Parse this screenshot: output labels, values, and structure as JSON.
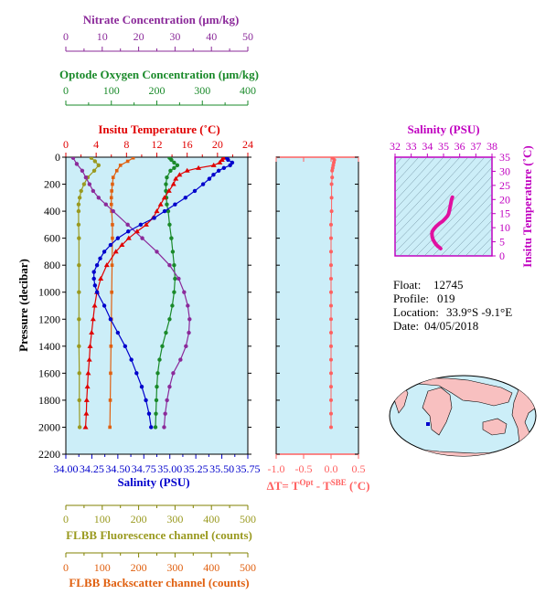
{
  "colors": {
    "nitrate": "#8b2a9a",
    "oxygen": "#1a8a2a",
    "temperature": "#e00000",
    "salinity": "#0000cc",
    "fluorescence": "#9a9a20",
    "backscatter": "#e06010",
    "delta_t": "#ff6060",
    "ts_curve": "#e010a0",
    "ts_title": "#c000c0",
    "plot_bg": "#cceef8",
    "axis_olive": "#808000"
  },
  "info": {
    "float_label": "Float:",
    "float_value": "12745",
    "profile_label": "Profile:",
    "profile_value": "019",
    "location_label": "Location:",
    "location_value": "33.9°S  -9.1°E",
    "date_label": "Date:",
    "date_value": "04/05/2018"
  },
  "chart_data": [
    {
      "type": "line",
      "panel": "main_profile",
      "ylabel": "Pressure (decibar)",
      "ylim": [
        2200,
        0
      ],
      "yticks": [
        "0",
        "200",
        "400",
        "600",
        "800",
        "1000",
        "1200",
        "1400",
        "1600",
        "1800",
        "2000",
        "2200"
      ],
      "axes": {
        "nitrate": {
          "title": "Nitrate Concentration (μm/kg)",
          "range": [
            0,
            50
          ],
          "ticks": [
            "0",
            "10",
            "20",
            "30",
            "40",
            "50"
          ]
        },
        "oxygen": {
          "title": "Optode Oxygen Concentration (μm/kg)",
          "range": [
            0,
            400
          ],
          "ticks": [
            "0",
            "100",
            "200",
            "300",
            "400"
          ]
        },
        "temperature": {
          "title": "Insitu Temperature (˚C)",
          "range": [
            0,
            24
          ],
          "ticks": [
            "0",
            "4",
            "8",
            "12",
            "16",
            "20",
            "24"
          ]
        },
        "salinity": {
          "title": "Salinity (PSU)",
          "range": [
            34.0,
            35.75
          ],
          "ticks": [
            "34.00",
            "34.25",
            "34.50",
            "34.75",
            "35.00",
            "35.25",
            "35.50",
            "35.75"
          ]
        },
        "fluorescence": {
          "title": "FLBB Fluorescence channel (counts)",
          "range": [
            0,
            500
          ],
          "ticks": [
            "0",
            "100",
            "200",
            "300",
            "400",
            "500"
          ]
        },
        "backscatter": {
          "title": "FLBB Backscatter channel (counts)",
          "range": [
            0,
            500
          ],
          "ticks": [
            "0",
            "100",
            "200",
            "300",
            "400",
            "500"
          ]
        }
      },
      "series": {
        "temperature": {
          "pressure": [
            5,
            20,
            40,
            60,
            80,
            100,
            130,
            160,
            200,
            250,
            300,
            350,
            400,
            450,
            500,
            550,
            600,
            650,
            700,
            800,
            900,
            1000,
            1100,
            1200,
            1300,
            1400,
            1500,
            1600,
            1700,
            1800,
            1900,
            2000
          ],
          "values": [
            20.8,
            20.6,
            20.3,
            19.5,
            17.5,
            16.0,
            15.0,
            14.5,
            14.2,
            13.6,
            13.0,
            12.5,
            12.0,
            11.5,
            10.6,
            9.4,
            8.3,
            7.4,
            6.6,
            5.4,
            4.6,
            4.1,
            3.8,
            3.6,
            3.4,
            3.2,
            3.1,
            2.95,
            2.85,
            2.75,
            2.7,
            2.6
          ]
        },
        "salinity": {
          "pressure": [
            5,
            20,
            40,
            60,
            80,
            100,
            130,
            160,
            200,
            250,
            300,
            350,
            400,
            450,
            500,
            550,
            600,
            650,
            700,
            750,
            800,
            850,
            900,
            950,
            1000,
            1100,
            1200,
            1300,
            1400,
            1500,
            1600,
            1700,
            1800,
            1900,
            2000
          ],
          "values": [
            35.55,
            35.56,
            35.6,
            35.58,
            35.52,
            35.47,
            35.42,
            35.38,
            35.32,
            35.24,
            35.15,
            35.05,
            34.95,
            34.85,
            34.72,
            34.6,
            34.5,
            34.43,
            34.37,
            34.33,
            34.3,
            34.27,
            34.27,
            34.28,
            34.3,
            34.37,
            34.43,
            34.5,
            34.57,
            34.63,
            34.68,
            34.73,
            34.77,
            34.8,
            34.82
          ]
        },
        "nitrate": {
          "pressure": [
            5,
            50,
            100,
            150,
            200,
            250,
            300,
            350,
            400,
            500,
            600,
            700,
            800,
            900,
            1000,
            1100,
            1200,
            1300,
            1400,
            1500,
            1600,
            1700,
            1800,
            1900,
            2000
          ],
          "values": [
            2,
            3,
            4.5,
            5.5,
            6.5,
            7.5,
            9,
            11,
            13,
            17,
            21,
            25,
            28.5,
            31,
            32.5,
            33.5,
            34,
            33.8,
            33,
            31.5,
            29.5,
            28.5,
            27.8,
            27.3,
            27
          ]
        },
        "oxygen": {
          "pressure": [
            5,
            20,
            40,
            60,
            80,
            100,
            150,
            200,
            250,
            300,
            350,
            400,
            500,
            600,
            700,
            800,
            900,
            1000,
            1100,
            1200,
            1300,
            1400,
            1500,
            1600,
            1700,
            1800,
            1900,
            2000
          ],
          "values": [
            228,
            232,
            238,
            245,
            238,
            230,
            222,
            220,
            220,
            221,
            222,
            225,
            228,
            232,
            235,
            238,
            240,
            238,
            234,
            228,
            220,
            212,
            206,
            202,
            200,
            199,
            198,
            197
          ]
        },
        "fluorescence": {
          "pressure": [
            5,
            30,
            60,
            100,
            150,
            200,
            250,
            300,
            350,
            400,
            500,
            600,
            800,
            1000,
            1200,
            1400,
            1600,
            1800,
            2000
          ],
          "values": [
            70,
            80,
            90,
            78,
            60,
            50,
            42,
            38,
            35,
            35,
            35,
            36,
            36,
            36,
            36,
            36,
            37,
            37,
            38
          ]
        },
        "backscatter": {
          "pressure": [
            5,
            30,
            60,
            100,
            150,
            200,
            250,
            300,
            350,
            400,
            500,
            600,
            800,
            1000,
            1200,
            1400,
            1600,
            1800,
            2000
          ],
          "values": [
            185,
            170,
            150,
            140,
            130,
            128,
            126,
            125,
            125,
            126,
            128,
            128,
            127,
            126,
            125,
            124,
            123,
            122,
            121
          ]
        }
      }
    },
    {
      "type": "scatter",
      "panel": "delta_t",
      "xlabel_main": "ΔT= T",
      "xlabel_sup1": "Opt",
      "xlabel_mid": " - T",
      "xlabel_sup2": "SBE",
      "xlabel_end": " (˚C)",
      "xlim": [
        -1.0,
        0.5
      ],
      "xticks": [
        "-1.0",
        "-0.5",
        "0.0",
        "0.5"
      ],
      "pressure": [
        5,
        20,
        40,
        60,
        80,
        100,
        150,
        200,
        300,
        400,
        500,
        600,
        700,
        800,
        900,
        1000,
        1100,
        1200,
        1300,
        1400,
        1500,
        1600,
        1700,
        1800,
        1900,
        2000
      ],
      "values": [
        0.03,
        0.06,
        0.05,
        0.04,
        0.03,
        0.02,
        0.02,
        0.01,
        0.01,
        0.01,
        0.0,
        0.0,
        0.0,
        0.0,
        0.0,
        0.0,
        0.0,
        0.0,
        0.0,
        0.0,
        0.0,
        0.0,
        0.0,
        0.0,
        0.0,
        0.0
      ]
    },
    {
      "type": "line",
      "panel": "ts_diagram",
      "title": "Salinity (PSU)",
      "ylabel": "Insitu Temperature (˚C)",
      "xlim": [
        32,
        38
      ],
      "ylim": [
        0,
        35
      ],
      "xticks": [
        "32",
        "33",
        "34",
        "35",
        "36",
        "37",
        "38"
      ],
      "yticks": [
        "0",
        "5",
        "10",
        "15",
        "20",
        "25",
        "30",
        "35"
      ],
      "salinity": [
        34.82,
        34.75,
        34.65,
        34.55,
        34.45,
        34.35,
        34.3,
        34.28,
        34.3,
        34.4,
        34.55,
        34.75,
        34.95,
        35.1,
        35.25,
        35.32,
        35.38,
        35.45,
        35.5,
        35.55
      ],
      "temperature": [
        2.6,
        3.0,
        3.4,
        4.0,
        4.8,
        5.8,
        6.8,
        7.8,
        8.6,
        9.5,
        10.5,
        11.5,
        12.3,
        13.2,
        14.2,
        15.0,
        16.5,
        18.5,
        20.0,
        20.8
      ]
    }
  ]
}
